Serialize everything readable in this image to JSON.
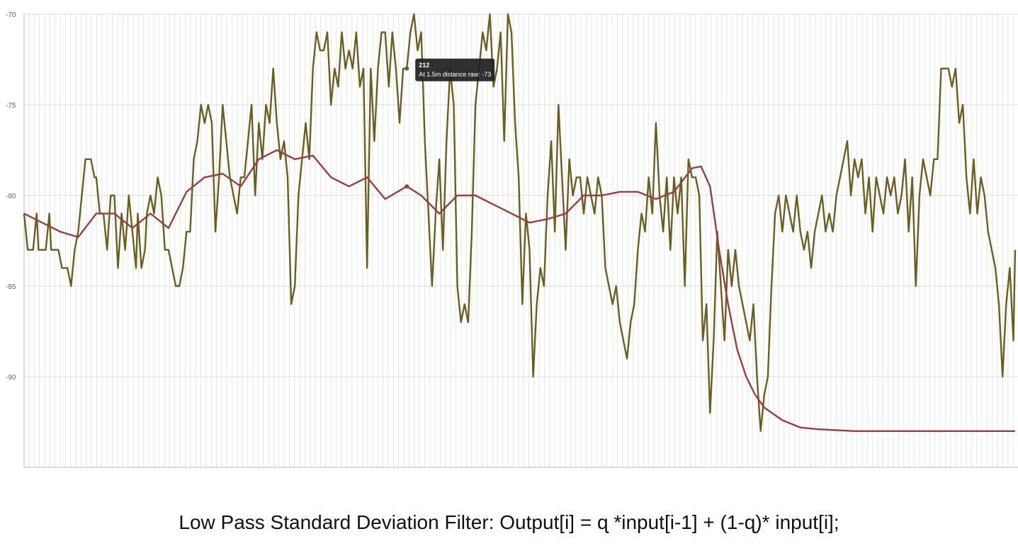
{
  "caption": "Low Pass Standard Deviation Filter: Output[i] = ɋ *input[i-1] + (1-ɋ)* input[i];",
  "colors": {
    "raw_series": "#6b5e21",
    "filtered_series": "#9b3e3e",
    "grid": "#e6e6e6",
    "axis": "#bbbbbb",
    "tooltip_bg": "#1e1e1e"
  },
  "tooltip": {
    "title": "212",
    "body": "At 1.5m distance raw: -73",
    "point_index": 212,
    "point_value": -73
  },
  "chart_data": {
    "type": "line",
    "title": "",
    "xlabel": "",
    "ylabel": "",
    "ylim": [
      -95,
      -70
    ],
    "yticks": [
      -70,
      -75,
      -80,
      -85,
      -90
    ],
    "ytick_labels": [
      "-70",
      "-75",
      "-80",
      "-85",
      "-90"
    ],
    "x_count": 550,
    "grid": "vertical-and-horizontal",
    "legend": "none",
    "series": [
      {
        "key": "raw",
        "anchors": [
          [
            0,
            -81
          ],
          [
            2,
            -83
          ],
          [
            5,
            -83
          ],
          [
            7,
            -81
          ],
          [
            8,
            -83
          ],
          [
            12,
            -83
          ],
          [
            14,
            -81
          ],
          [
            15,
            -83
          ],
          [
            19,
            -83
          ],
          [
            21,
            -84
          ],
          [
            24,
            -84
          ],
          [
            26,
            -85
          ],
          [
            28,
            -83
          ],
          [
            30,
            -82
          ],
          [
            32,
            -80
          ],
          [
            34,
            -78
          ],
          [
            37,
            -78
          ],
          [
            39,
            -79
          ],
          [
            40,
            -79
          ],
          [
            42,
            -81
          ],
          [
            44,
            -81
          ],
          [
            46,
            -83
          ],
          [
            48,
            -80
          ],
          [
            50,
            -80
          ],
          [
            52,
            -84
          ],
          [
            54,
            -81
          ],
          [
            56,
            -83
          ],
          [
            58,
            -80
          ],
          [
            60,
            -82
          ],
          [
            62,
            -84
          ],
          [
            63,
            -81
          ],
          [
            65,
            -84
          ],
          [
            67,
            -83
          ],
          [
            68,
            -81
          ],
          [
            70,
            -80
          ],
          [
            72,
            -81
          ],
          [
            74,
            -79
          ],
          [
            76,
            -80
          ],
          [
            78,
            -83
          ],
          [
            80,
            -83
          ],
          [
            82,
            -84
          ],
          [
            84,
            -85
          ],
          [
            86,
            -85
          ],
          [
            88,
            -84
          ],
          [
            90,
            -82
          ],
          [
            92,
            -82
          ],
          [
            94,
            -78
          ],
          [
            96,
            -77
          ],
          [
            98,
            -75
          ],
          [
            100,
            -76
          ],
          [
            102,
            -75
          ],
          [
            104,
            -76
          ],
          [
            106,
            -82
          ],
          [
            108,
            -79
          ],
          [
            110,
            -75
          ],
          [
            112,
            -77
          ],
          [
            114,
            -79
          ],
          [
            116,
            -80
          ],
          [
            118,
            -81
          ],
          [
            120,
            -79
          ],
          [
            122,
            -79
          ],
          [
            124,
            -77
          ],
          [
            126,
            -75
          ],
          [
            128,
            -80
          ],
          [
            130,
            -76
          ],
          [
            132,
            -78
          ],
          [
            134,
            -75
          ],
          [
            136,
            -76
          ],
          [
            138,
            -73
          ],
          [
            140,
            -76
          ],
          [
            142,
            -78
          ],
          [
            144,
            -77
          ],
          [
            146,
            -79
          ],
          [
            148,
            -86
          ],
          [
            150,
            -85
          ],
          [
            152,
            -80
          ],
          [
            154,
            -78
          ],
          [
            156,
            -76
          ],
          [
            158,
            -78
          ],
          [
            160,
            -73
          ],
          [
            162,
            -71
          ],
          [
            164,
            -72
          ],
          [
            166,
            -72
          ],
          [
            168,
            -71
          ],
          [
            170,
            -75
          ],
          [
            172,
            -73
          ],
          [
            174,
            -74
          ],
          [
            176,
            -71
          ],
          [
            178,
            -73
          ],
          [
            180,
            -72
          ],
          [
            182,
            -73
          ],
          [
            184,
            -71
          ],
          [
            186,
            -74
          ],
          [
            188,
            -73
          ],
          [
            190,
            -84
          ],
          [
            192,
            -73
          ],
          [
            194,
            -77
          ],
          [
            196,
            -73
          ],
          [
            198,
            -71
          ],
          [
            200,
            -71
          ],
          [
            202,
            -74
          ],
          [
            204,
            -71
          ],
          [
            206,
            -73
          ],
          [
            208,
            -76
          ],
          [
            210,
            -73
          ],
          [
            212,
            -73
          ],
          [
            214,
            -71
          ],
          [
            216,
            -70
          ],
          [
            218,
            -72
          ],
          [
            220,
            -71
          ],
          [
            222,
            -77
          ],
          [
            224,
            -81
          ],
          [
            226,
            -85
          ],
          [
            228,
            -81
          ],
          [
            230,
            -78
          ],
          [
            232,
            -83
          ],
          [
            234,
            -77
          ],
          [
            236,
            -73
          ],
          [
            238,
            -75
          ],
          [
            240,
            -85
          ],
          [
            242,
            -87
          ],
          [
            244,
            -86
          ],
          [
            246,
            -87
          ],
          [
            248,
            -82
          ],
          [
            250,
            -75
          ],
          [
            252,
            -73
          ],
          [
            254,
            -71
          ],
          [
            256,
            -72
          ],
          [
            258,
            -70
          ],
          [
            260,
            -74
          ],
          [
            262,
            -73
          ],
          [
            264,
            -71
          ],
          [
            266,
            -77
          ],
          [
            268,
            -70
          ],
          [
            270,
            -71
          ],
          [
            272,
            -76
          ],
          [
            274,
            -79
          ],
          [
            276,
            -86
          ],
          [
            278,
            -81
          ],
          [
            280,
            -83
          ],
          [
            282,
            -90
          ],
          [
            284,
            -86
          ],
          [
            286,
            -84
          ],
          [
            288,
            -85
          ],
          [
            290,
            -80
          ],
          [
            292,
            -77
          ],
          [
            294,
            -82
          ],
          [
            296,
            -75
          ],
          [
            298,
            -79
          ],
          [
            300,
            -83
          ],
          [
            302,
            -78
          ],
          [
            304,
            -80
          ],
          [
            306,
            -79
          ],
          [
            308,
            -79
          ],
          [
            310,
            -81
          ],
          [
            312,
            -79
          ],
          [
            314,
            -80
          ],
          [
            316,
            -81
          ],
          [
            318,
            -79
          ],
          [
            320,
            -80
          ],
          [
            322,
            -84
          ],
          [
            324,
            -85
          ],
          [
            326,
            -86
          ],
          [
            328,
            -85
          ],
          [
            330,
            -87
          ],
          [
            332,
            -88
          ],
          [
            334,
            -89
          ],
          [
            336,
            -87
          ],
          [
            338,
            -86
          ],
          [
            340,
            -83
          ],
          [
            342,
            -81
          ],
          [
            344,
            -82
          ],
          [
            346,
            -79
          ],
          [
            348,
            -81
          ],
          [
            350,
            -76
          ],
          [
            352,
            -80
          ],
          [
            354,
            -82
          ],
          [
            356,
            -79
          ],
          [
            358,
            -83
          ],
          [
            360,
            -79
          ],
          [
            362,
            -81
          ],
          [
            364,
            -79
          ],
          [
            366,
            -85
          ],
          [
            368,
            -78
          ],
          [
            370,
            -79
          ],
          [
            372,
            -79
          ],
          [
            374,
            -80
          ],
          [
            376,
            -88
          ],
          [
            378,
            -86
          ],
          [
            380,
            -92
          ],
          [
            382,
            -88
          ],
          [
            384,
            -82
          ],
          [
            386,
            -85
          ],
          [
            388,
            -88
          ],
          [
            390,
            -83
          ],
          [
            392,
            -85
          ],
          [
            394,
            -83
          ],
          [
            396,
            -85
          ],
          [
            398,
            -86
          ],
          [
            400,
            -87
          ],
          [
            402,
            -88
          ],
          [
            404,
            -86
          ],
          [
            406,
            -90
          ],
          [
            408,
            -93
          ],
          [
            410,
            -91
          ],
          [
            412,
            -90
          ],
          [
            414,
            -85
          ],
          [
            416,
            -81
          ],
          [
            418,
            -80
          ],
          [
            420,
            -82
          ],
          [
            422,
            -80
          ],
          [
            424,
            -81
          ],
          [
            426,
            -82
          ],
          [
            428,
            -80
          ],
          [
            430,
            -82
          ],
          [
            432,
            -83
          ],
          [
            434,
            -82
          ],
          [
            436,
            -84
          ],
          [
            438,
            -82
          ],
          [
            440,
            -81
          ],
          [
            442,
            -80
          ],
          [
            444,
            -82
          ],
          [
            446,
            -81
          ],
          [
            448,
            -82
          ],
          [
            450,
            -80
          ],
          [
            452,
            -79
          ],
          [
            454,
            -78
          ],
          [
            456,
            -77
          ],
          [
            458,
            -80
          ],
          [
            460,
            -78
          ],
          [
            462,
            -79
          ],
          [
            464,
            -78
          ],
          [
            466,
            -81
          ],
          [
            468,
            -79
          ],
          [
            470,
            -82
          ],
          [
            472,
            -79
          ],
          [
            474,
            -80
          ],
          [
            476,
            -81
          ],
          [
            478,
            -79
          ],
          [
            480,
            -80
          ],
          [
            482,
            -79
          ],
          [
            484,
            -81
          ],
          [
            486,
            -80
          ],
          [
            488,
            -78
          ],
          [
            490,
            -82
          ],
          [
            492,
            -79
          ],
          [
            494,
            -85
          ],
          [
            496,
            -80
          ],
          [
            498,
            -78
          ],
          [
            500,
            -79
          ],
          [
            502,
            -80
          ],
          [
            504,
            -78
          ],
          [
            506,
            -78
          ],
          [
            508,
            -73
          ],
          [
            510,
            -73
          ],
          [
            512,
            -73
          ],
          [
            514,
            -74
          ],
          [
            516,
            -73
          ],
          [
            518,
            -76
          ],
          [
            520,
            -75
          ],
          [
            522,
            -79
          ],
          [
            524,
            -81
          ],
          [
            526,
            -78
          ],
          [
            528,
            -81
          ],
          [
            530,
            -79
          ],
          [
            532,
            -80
          ],
          [
            534,
            -82
          ],
          [
            536,
            -83
          ],
          [
            538,
            -84
          ],
          [
            540,
            -86
          ],
          [
            542,
            -90
          ],
          [
            544,
            -86
          ],
          [
            546,
            -84
          ],
          [
            548,
            -88
          ],
          [
            549,
            -83
          ]
        ]
      },
      {
        "key": "filtered",
        "anchors": [
          [
            0,
            -81
          ],
          [
            10,
            -81.5
          ],
          [
            20,
            -82
          ],
          [
            30,
            -82.3
          ],
          [
            40,
            -81
          ],
          [
            50,
            -81
          ],
          [
            60,
            -81.8
          ],
          [
            70,
            -81
          ],
          [
            80,
            -81.8
          ],
          [
            90,
            -79.8
          ],
          [
            100,
            -79
          ],
          [
            110,
            -78.8
          ],
          [
            120,
            -79.5
          ],
          [
            130,
            -78
          ],
          [
            140,
            -77.5
          ],
          [
            150,
            -78
          ],
          [
            160,
            -77.8
          ],
          [
            170,
            -79
          ],
          [
            180,
            -79.5
          ],
          [
            190,
            -79
          ],
          [
            200,
            -80.2
          ],
          [
            212,
            -79.5
          ],
          [
            220,
            -80
          ],
          [
            230,
            -81
          ],
          [
            240,
            -80
          ],
          [
            250,
            -80
          ],
          [
            260,
            -80.5
          ],
          [
            270,
            -81
          ],
          [
            280,
            -81.5
          ],
          [
            290,
            -81.3
          ],
          [
            300,
            -81
          ],
          [
            310,
            -80
          ],
          [
            320,
            -80
          ],
          [
            330,
            -79.8
          ],
          [
            340,
            -79.8
          ],
          [
            350,
            -80.2
          ],
          [
            360,
            -79.8
          ],
          [
            370,
            -78.5
          ],
          [
            375,
            -78.4
          ],
          [
            380,
            -79.5
          ],
          [
            385,
            -83
          ],
          [
            390,
            -86
          ],
          [
            395,
            -88.5
          ],
          [
            400,
            -90
          ],
          [
            405,
            -91
          ],
          [
            410,
            -91.7
          ],
          [
            420,
            -92.4
          ],
          [
            430,
            -92.8
          ],
          [
            440,
            -92.9
          ],
          [
            460,
            -93
          ],
          [
            549,
            -93
          ]
        ]
      }
    ]
  }
}
